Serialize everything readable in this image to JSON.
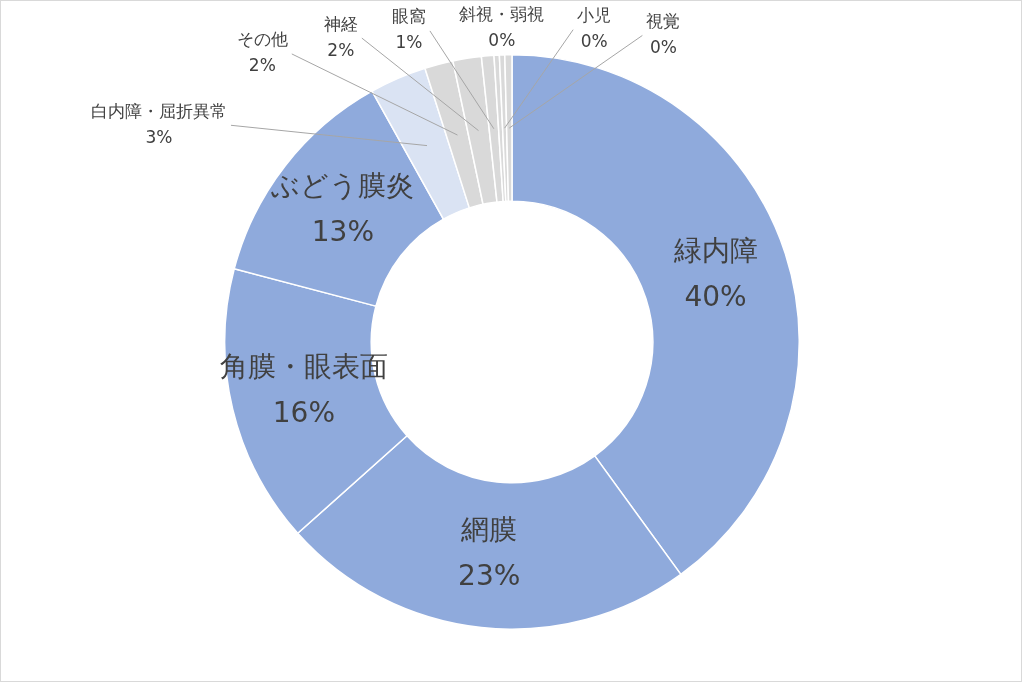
{
  "chart_data": {
    "type": "donut",
    "categories": [
      "緑内障",
      "網膜",
      "角膜・眼表面",
      "ぶどう膜炎",
      "白内障・屈折異常",
      "その他",
      "神経",
      "眼窩",
      "斜視・弱視",
      "小児",
      "視覚"
    ],
    "values": [
      40.0,
      23.4,
      15.7,
      12.8,
      3.2,
      1.6,
      1.6,
      0.7,
      0.3,
      0.3,
      0.4
    ],
    "value_labels": [
      "40%",
      "23%",
      "16%",
      "13%",
      "3%",
      "2%",
      "2%",
      "1%",
      "0%",
      "0%",
      "0%"
    ],
    "colors": [
      "#8faadc",
      "#8faadc",
      "#8faadc",
      "#8faadc",
      "#dae3f3",
      "#d9d9d9",
      "#d9d9d9",
      "#d9d9d9",
      "#d9d9d9",
      "#d9d9d9",
      "#d9d9d9"
    ]
  }
}
